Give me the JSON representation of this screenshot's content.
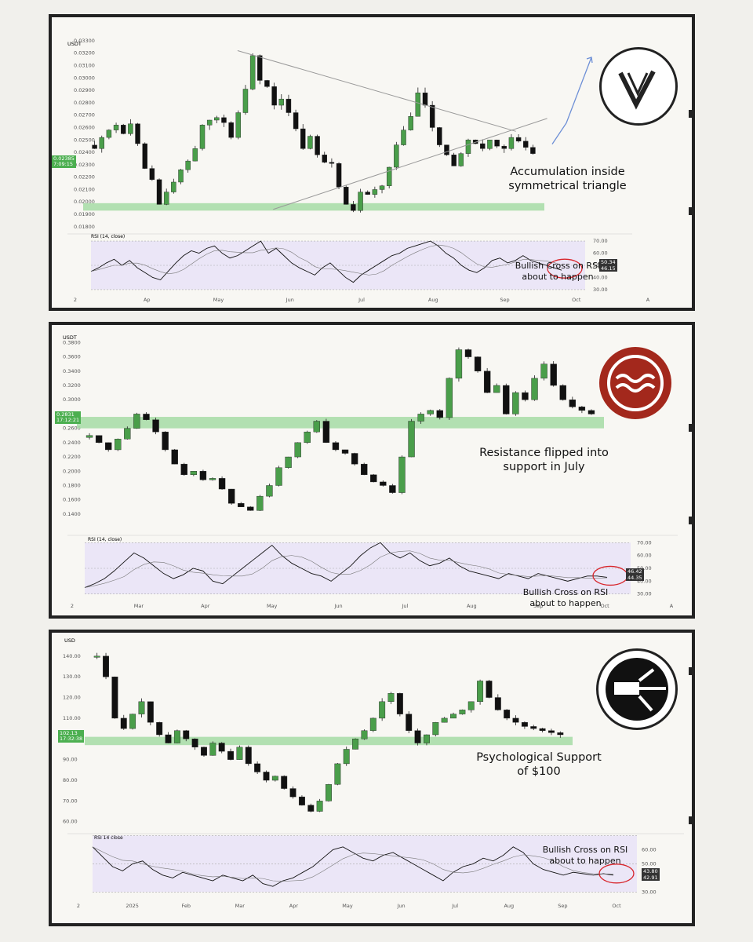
{
  "chart_data": [
    {
      "type": "candlestick",
      "asset_logo": "vechain-logo",
      "currency": "USDT",
      "y_ticks": [
        "0.03300",
        "0.03200",
        "0.03100",
        "0.03000",
        "0.02900",
        "0.02800",
        "0.02700",
        "0.02600",
        "0.02500",
        "0.02400",
        "0.02300",
        "0.02200",
        "0.02100",
        "0.02000",
        "0.01900",
        "0.01800"
      ],
      "ylim": [
        0.0178,
        0.0335
      ],
      "x_ticks": [
        "2",
        "Ap",
        "May",
        "Jun",
        "Jul",
        "Aug",
        "Sep",
        "Oct",
        "A"
      ],
      "last_price": "0.02385",
      "last_price_timer": "7:09:15",
      "close": [
        0.0243,
        0.0252,
        0.0258,
        0.0262,
        0.0255,
        0.0263,
        0.0247,
        0.0227,
        0.0218,
        0.0198,
        0.0208,
        0.0216,
        0.0226,
        0.0233,
        0.0243,
        0.0262,
        0.0266,
        0.0268,
        0.0264,
        0.0252,
        0.0272,
        0.0291,
        0.0318,
        0.0298,
        0.0293,
        0.0278,
        0.0283,
        0.0272,
        0.0259,
        0.0243,
        0.0253,
        0.0238,
        0.0232,
        0.0231,
        0.0212,
        0.0198,
        0.0193,
        0.0208,
        0.0206,
        0.021,
        0.0213,
        0.0228,
        0.0246,
        0.0258,
        0.0269,
        0.0288,
        0.0278,
        0.026,
        0.0246,
        0.0238,
        0.0229,
        0.0239,
        0.025,
        0.0247,
        0.0243,
        0.025,
        0.0245,
        0.0243,
        0.0252,
        0.0249,
        0.0244,
        0.0239
      ],
      "support_zone": [
        0.0193,
        0.0199
      ],
      "triangle_upper": [
        [
          0.0322,
          0.329
        ],
        [
          0.0262,
          0.672
        ]
      ],
      "triangle_lower": [
        [
          0.0194,
          0.409
        ],
        [
          0.0242,
          0.707
        ]
      ],
      "projection_arrow": [
        0.0258,
        0.0251,
        0.0285
      ],
      "annotation": "Accumulation inside symmetrical triangle",
      "rsi": {
        "label": "RSI (14, close)",
        "value1": "46.15",
        "value2": "50.34",
        "ticks": [
          "70.00",
          "60.00",
          "50.00",
          "40.00",
          "30.00"
        ],
        "ylim": [
          28,
          72
        ],
        "values": [
          45,
          48,
          52,
          55,
          50,
          54,
          48,
          44,
          40,
          38,
          45,
          52,
          58,
          62,
          60,
          64,
          66,
          60,
          56,
          58,
          62,
          66,
          70,
          60,
          64,
          58,
          52,
          48,
          45,
          42,
          48,
          52,
          46,
          40,
          36,
          42,
          46,
          50,
          54,
          58,
          60,
          64,
          66,
          68,
          70,
          66,
          60,
          56,
          50,
          46,
          44,
          48,
          54,
          56,
          52,
          54,
          58,
          54,
          52,
          50,
          48,
          46
        ],
        "annotation": "Bullish Cross on RSI about to happen"
      }
    },
    {
      "type": "candlestick",
      "asset_logo": "sei-logo",
      "currency": "USDT",
      "y_ticks": [
        "0.3800",
        "0.3600",
        "0.3400",
        "0.3200",
        "0.3000",
        "0.2800",
        "0.2600",
        "0.2400",
        "0.2200",
        "0.2000",
        "0.1800",
        "0.1600",
        "0.1400"
      ],
      "ylim": [
        0.13,
        0.387
      ],
      "x_ticks": [
        "2",
        "Mar",
        "Apr",
        "May",
        "Jun",
        "Jul",
        "Aug",
        "Sep",
        "Oct",
        "A"
      ],
      "last_price": "0.2831",
      "last_price_timer": "17:12:21",
      "close": [
        0.25,
        0.24,
        0.23,
        0.245,
        0.26,
        0.28,
        0.272,
        0.255,
        0.23,
        0.21,
        0.195,
        0.2,
        0.188,
        0.19,
        0.175,
        0.155,
        0.15,
        0.145,
        0.165,
        0.18,
        0.205,
        0.22,
        0.24,
        0.255,
        0.27,
        0.24,
        0.23,
        0.225,
        0.21,
        0.195,
        0.185,
        0.18,
        0.17,
        0.22,
        0.27,
        0.28,
        0.285,
        0.275,
        0.33,
        0.37,
        0.36,
        0.34,
        0.31,
        0.32,
        0.28,
        0.31,
        0.3,
        0.33,
        0.35,
        0.32,
        0.3,
        0.29,
        0.285,
        0.28
      ],
      "support_zone": [
        0.26,
        0.276
      ],
      "annotation": "Resistance flipped into support in July",
      "rsi": {
        "label": "RSI (14, close)",
        "value1": "44.35",
        "value2": "46.42",
        "ticks": [
          "70.00",
          "60.00",
          "50.00",
          "40.00",
          "30.00"
        ],
        "ylim": [
          28,
          72
        ],
        "values": [
          35,
          38,
          42,
          48,
          55,
          62,
          58,
          52,
          46,
          42,
          45,
          50,
          48,
          40,
          38,
          44,
          50,
          56,
          62,
          68,
          60,
          54,
          50,
          46,
          44,
          40,
          46,
          52,
          60,
          66,
          70,
          62,
          58,
          62,
          56,
          52,
          54,
          58,
          52,
          48,
          46,
          44,
          42,
          46,
          44,
          42,
          46,
          44,
          42,
          40,
          42,
          44,
          44,
          43
        ],
        "annotation": "Bullish Cross on RSI about to happen"
      }
    },
    {
      "type": "candlestick",
      "asset_logo": "quant-logo",
      "currency": "USD",
      "y_ticks": [
        "140.00",
        "130.00",
        "120.00",
        "110.00",
        "100.00",
        "90.00",
        "80.00",
        "70.00",
        "60.00"
      ],
      "ylim": [
        58,
        146
      ],
      "x_ticks": [
        "2",
        "2025",
        "Feb",
        "Mar",
        "Apr",
        "May",
        "Jun",
        "Jul",
        "Aug",
        "Sep",
        "Oct"
      ],
      "last_price": "102.13",
      "last_price_timer": "17:32:38",
      "close": [
        140,
        130,
        110,
        105,
        112,
        118,
        108,
        102,
        98,
        104,
        100,
        96,
        92,
        98,
        94,
        90,
        96,
        88,
        84,
        80,
        82,
        76,
        72,
        68,
        65,
        70,
        78,
        88,
        95,
        100,
        104,
        110,
        118,
        122,
        112,
        104,
        98,
        102,
        108,
        110,
        112,
        114,
        118,
        128,
        120,
        114,
        110,
        108,
        106,
        105,
        104,
        103,
        102
      ],
      "support_zone": [
        97,
        101
      ],
      "annotation": "Psychological Support of $100",
      "rsi": {
        "label": "RSI 14 close",
        "value1": "42.91",
        "value2": "43.80",
        "ticks": [
          "60.00",
          "50.00",
          "40.00",
          "30.00"
        ],
        "ylim": [
          28,
          68
        ],
        "values": [
          62,
          55,
          48,
          45,
          50,
          52,
          46,
          42,
          40,
          44,
          42,
          40,
          38,
          42,
          40,
          38,
          42,
          36,
          34,
          38,
          40,
          44,
          48,
          54,
          60,
          62,
          58,
          54,
          52,
          56,
          58,
          54,
          50,
          46,
          42,
          38,
          44,
          48,
          50,
          54,
          52,
          56,
          62,
          58,
          50,
          46,
          44,
          42,
          44,
          43,
          42,
          43,
          42
        ],
        "annotation": "Bullish Cross on RSI about to happen"
      }
    }
  ],
  "colors": {
    "up": "#4a9e4a",
    "down": "#111111",
    "zone": "#a6dca4",
    "rsi_band": "#ebe6f7",
    "highlight_circle": "#d8262c",
    "projection": "#6d8fd6"
  }
}
